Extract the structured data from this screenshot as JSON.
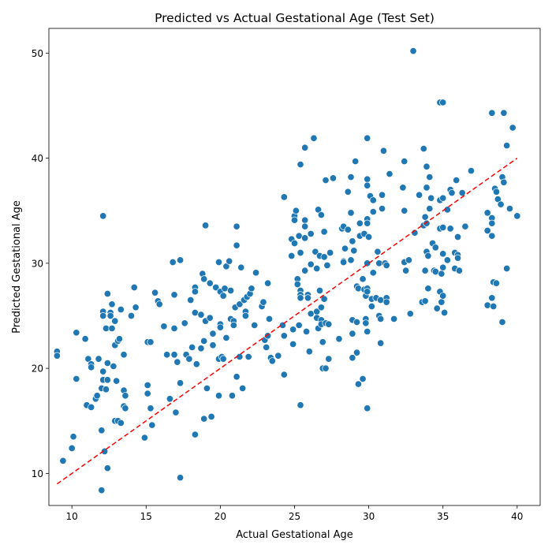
{
  "chart_data": {
    "type": "scatter",
    "title": "Predicted vs Actual Gestational Age (Test Set)",
    "xlabel": "Actual Gestational Age",
    "ylabel": "Predicted Gestational Age",
    "xlim": [
      8.45,
      41.55
    ],
    "ylim": [
      6.95,
      52.35
    ],
    "xticks": [
      10,
      15,
      20,
      25,
      30,
      35,
      40
    ],
    "yticks": [
      10,
      20,
      30,
      40,
      50
    ],
    "grid": false,
    "colors": {
      "point": "#1f77b4",
      "point_edge": "#ffffff",
      "reference_line": "#ff0000"
    },
    "reference_line": {
      "style": "dashed",
      "from": [
        9.0,
        9.0
      ],
      "to": [
        40.0,
        40.0
      ]
    },
    "points": [
      [
        9.0,
        21.6
      ],
      [
        9.0,
        21.2
      ],
      [
        9.4,
        11.2
      ],
      [
        10.0,
        12.4
      ],
      [
        10.1,
        13.5
      ],
      [
        10.3,
        19.0
      ],
      [
        10.3,
        23.4
      ],
      [
        10.9,
        22.8
      ],
      [
        11.0,
        16.5
      ],
      [
        11.1,
        20.9
      ],
      [
        11.3,
        20.4
      ],
      [
        11.3,
        20.1
      ],
      [
        11.3,
        16.3
      ],
      [
        11.6,
        17.1
      ],
      [
        11.7,
        17.4
      ],
      [
        11.8,
        20.9
      ],
      [
        12.0,
        18.1
      ],
      [
        12.0,
        8.4
      ],
      [
        12.0,
        14.1
      ],
      [
        12.1,
        34.5
      ],
      [
        12.1,
        25.4
      ],
      [
        12.1,
        25.0
      ],
      [
        12.1,
        19.7
      ],
      [
        12.1,
        18.9
      ],
      [
        12.2,
        12.1
      ],
      [
        12.3,
        23.8
      ],
      [
        12.3,
        18.0
      ],
      [
        12.4,
        27.1
      ],
      [
        12.4,
        20.5
      ],
      [
        12.4,
        18.9
      ],
      [
        12.4,
        10.5
      ],
      [
        12.6,
        25.3
      ],
      [
        12.6,
        25.0
      ],
      [
        12.7,
        26.1
      ],
      [
        12.7,
        23.8
      ],
      [
        12.8,
        20.2
      ],
      [
        12.9,
        15.0
      ],
      [
        12.9,
        22.2
      ],
      [
        12.9,
        24.5
      ],
      [
        13.0,
        18.8
      ],
      [
        13.1,
        15.0
      ],
      [
        13.1,
        22.6
      ],
      [
        13.2,
        22.8
      ],
      [
        13.3,
        25.6
      ],
      [
        13.3,
        14.8
      ],
      [
        13.5,
        17.9
      ],
      [
        13.5,
        21.3
      ],
      [
        13.5,
        16.4
      ],
      [
        13.6,
        16.2
      ],
      [
        13.6,
        17.4
      ],
      [
        14.0,
        25.0
      ],
      [
        14.2,
        27.7
      ],
      [
        14.3,
        25.8
      ],
      [
        14.9,
        13.4
      ],
      [
        15.1,
        22.5
      ],
      [
        15.1,
        18.4
      ],
      [
        15.1,
        17.6
      ],
      [
        15.3,
        16.2
      ],
      [
        15.3,
        22.5
      ],
      [
        15.4,
        14.6
      ],
      [
        15.6,
        27.2
      ],
      [
        15.8,
        26.4
      ],
      [
        15.9,
        26.1
      ],
      [
        16.2,
        24.0
      ],
      [
        16.4,
        21.3
      ],
      [
        16.6,
        17.1
      ],
      [
        16.8,
        30.1
      ],
      [
        16.9,
        27.0
      ],
      [
        16.9,
        23.8
      ],
      [
        16.9,
        21.3
      ],
      [
        17.0,
        15.8
      ],
      [
        17.1,
        20.6
      ],
      [
        17.3,
        30.3
      ],
      [
        17.3,
        18.6
      ],
      [
        17.3,
        9.6
      ],
      [
        17.6,
        24.3
      ],
      [
        17.7,
        21.3
      ],
      [
        17.9,
        20.9
      ],
      [
        18.0,
        26.5
      ],
      [
        18.1,
        22.0
      ],
      [
        18.3,
        27.7
      ],
      [
        18.3,
        27.3
      ],
      [
        18.3,
        25.3
      ],
      [
        18.3,
        13.7
      ],
      [
        18.4,
        20.4
      ],
      [
        18.7,
        25.1
      ],
      [
        18.7,
        21.9
      ],
      [
        18.8,
        29.0
      ],
      [
        18.9,
        28.5
      ],
      [
        18.9,
        22.6
      ],
      [
        18.9,
        15.2
      ],
      [
        19.0,
        33.6
      ],
      [
        19.0,
        24.5
      ],
      [
        19.1,
        18.1
      ],
      [
        19.3,
        28.1
      ],
      [
        19.3,
        24.8
      ],
      [
        19.4,
        15.4
      ],
      [
        19.5,
        23.3
      ],
      [
        19.5,
        22.2
      ],
      [
        19.7,
        27.7
      ],
      [
        19.9,
        30.1
      ],
      [
        19.9,
        20.9
      ],
      [
        19.9,
        17.4
      ],
      [
        20.0,
        27.3
      ],
      [
        20.0,
        24.2
      ],
      [
        20.0,
        23.9
      ],
      [
        20.1,
        21.1
      ],
      [
        20.2,
        26.9
      ],
      [
        20.2,
        20.9
      ],
      [
        20.3,
        27.6
      ],
      [
        20.4,
        29.7
      ],
      [
        20.4,
        22.9
      ],
      [
        20.6,
        30.2
      ],
      [
        20.7,
        27.4
      ],
      [
        20.7,
        24.7
      ],
      [
        20.8,
        17.4
      ],
      [
        20.9,
        24.5
      ],
      [
        20.9,
        24.1
      ],
      [
        21.0,
        25.8
      ],
      [
        21.1,
        19.2
      ],
      [
        21.1,
        31.7
      ],
      [
        21.1,
        33.5
      ],
      [
        21.3,
        26.1
      ],
      [
        21.3,
        21.1
      ],
      [
        21.4,
        29.6
      ],
      [
        21.5,
        18.1
      ],
      [
        21.6,
        26.5
      ],
      [
        21.7,
        25.4
      ],
      [
        21.7,
        25.0
      ],
      [
        21.8,
        26.8
      ],
      [
        21.9,
        21.1
      ],
      [
        22.0,
        27.1
      ],
      [
        22.1,
        27.6
      ],
      [
        22.3,
        24.1
      ],
      [
        22.4,
        29.1
      ],
      [
        22.8,
        25.9
      ],
      [
        22.9,
        26.3
      ],
      [
        23.0,
        22.7
      ],
      [
        23.1,
        22.0
      ],
      [
        23.2,
        23.1
      ],
      [
        23.2,
        28.1
      ],
      [
        23.3,
        24.7
      ],
      [
        23.4,
        21.0
      ],
      [
        23.5,
        20.7
      ],
      [
        23.9,
        21.2
      ],
      [
        24.2,
        24.1
      ],
      [
        24.3,
        36.3
      ],
      [
        24.3,
        23.1
      ],
      [
        24.3,
        19.4
      ],
      [
        24.8,
        32.3
      ],
      [
        24.8,
        30.7
      ],
      [
        24.9,
        23.7
      ],
      [
        24.9,
        22.3
      ],
      [
        25.0,
        34.5
      ],
      [
        25.0,
        34.1
      ],
      [
        25.0,
        31.9
      ],
      [
        25.1,
        35.0
      ],
      [
        25.2,
        28.5
      ],
      [
        25.2,
        28.0
      ],
      [
        25.3,
        32.6
      ],
      [
        25.3,
        24.1
      ],
      [
        25.4,
        16.5
      ],
      [
        25.4,
        39.4
      ],
      [
        25.4,
        31.0
      ],
      [
        25.4,
        27.4
      ],
      [
        25.4,
        27.0
      ],
      [
        25.4,
        26.7
      ],
      [
        25.7,
        41.0
      ],
      [
        25.7,
        34.1
      ],
      [
        25.7,
        33.5
      ],
      [
        25.7,
        32.4
      ],
      [
        25.7,
        29.3
      ],
      [
        25.8,
        23.5
      ],
      [
        25.9,
        27.0
      ],
      [
        25.9,
        26.7
      ],
      [
        26.0,
        21.6
      ],
      [
        26.1,
        25.2
      ],
      [
        26.1,
        29.9
      ],
      [
        26.1,
        32.8
      ],
      [
        26.3,
        41.9
      ],
      [
        26.4,
        31.1
      ],
      [
        26.5,
        29.5
      ],
      [
        26.5,
        25.4
      ],
      [
        26.5,
        24.8
      ],
      [
        26.6,
        23.8
      ],
      [
        26.6,
        35.1
      ],
      [
        26.7,
        30.7
      ],
      [
        26.7,
        27.4
      ],
      [
        26.8,
        34.6
      ],
      [
        26.8,
        25.8
      ],
      [
        26.8,
        24.6
      ],
      [
        26.8,
        24.2
      ],
      [
        26.9,
        22.5
      ],
      [
        26.9,
        20.0
      ],
      [
        27.0,
        30.6
      ],
      [
        27.0,
        26.6
      ],
      [
        27.0,
        33.0
      ],
      [
        27.1,
        37.9
      ],
      [
        27.1,
        20.0
      ],
      [
        27.1,
        24.3
      ],
      [
        27.2,
        29.8
      ],
      [
        27.3,
        20.9
      ],
      [
        27.3,
        24.2
      ],
      [
        27.4,
        31.0
      ],
      [
        27.6,
        38.1
      ],
      [
        28.0,
        22.8
      ],
      [
        28.2,
        33.3
      ],
      [
        28.3,
        33.5
      ],
      [
        28.3,
        30.2
      ],
      [
        28.3,
        30.1
      ],
      [
        28.4,
        31.4
      ],
      [
        28.6,
        36.8
      ],
      [
        28.6,
        33.2
      ],
      [
        28.8,
        38.2
      ],
      [
        28.8,
        34.8
      ],
      [
        28.8,
        30.3
      ],
      [
        28.9,
        32.1
      ],
      [
        28.9,
        24.6
      ],
      [
        28.9,
        23.3
      ],
      [
        28.9,
        21.0
      ],
      [
        29.0,
        31.2
      ],
      [
        29.1,
        39.7
      ],
      [
        29.2,
        27.8
      ],
      [
        29.2,
        24.4
      ],
      [
        29.2,
        21.5
      ],
      [
        29.3,
        27.6
      ],
      [
        29.3,
        18.5
      ],
      [
        29.4,
        33.8
      ],
      [
        29.4,
        32.6
      ],
      [
        29.6,
        28.5
      ],
      [
        29.6,
        19.0
      ],
      [
        29.7,
        27.5
      ],
      [
        29.7,
        32.8
      ],
      [
        29.8,
        26.9
      ],
      [
        29.8,
        24.7
      ],
      [
        29.8,
        24.3
      ],
      [
        29.9,
        41.9
      ],
      [
        29.9,
        38.0
      ],
      [
        29.9,
        37.4
      ],
      [
        29.9,
        34.2
      ],
      [
        29.9,
        33.8
      ],
      [
        29.9,
        30.0
      ],
      [
        29.9,
        27.6
      ],
      [
        29.9,
        27.3
      ],
      [
        29.9,
        23.5
      ],
      [
        29.9,
        16.2
      ],
      [
        30.0,
        32.5
      ],
      [
        30.1,
        36.4
      ],
      [
        30.2,
        26.6
      ],
      [
        30.2,
        25.9
      ],
      [
        30.3,
        29.1
      ],
      [
        30.3,
        34.9
      ],
      [
        30.3,
        36.0
      ],
      [
        30.5,
        26.7
      ],
      [
        30.6,
        31.1
      ],
      [
        30.7,
        30.0
      ],
      [
        30.7,
        25.0
      ],
      [
        30.8,
        26.5
      ],
      [
        30.8,
        24.7
      ],
      [
        30.8,
        22.4
      ],
      [
        30.9,
        36.5
      ],
      [
        30.9,
        35.2
      ],
      [
        31.0,
        40.7
      ],
      [
        31.1,
        30.0
      ],
      [
        31.2,
        29.8
      ],
      [
        31.2,
        26.7
      ],
      [
        31.2,
        26.3
      ],
      [
        31.4,
        38.5
      ],
      [
        31.7,
        24.7
      ],
      [
        32.3,
        37.2
      ],
      [
        32.4,
        35.0
      ],
      [
        32.4,
        39.7
      ],
      [
        32.4,
        30.1
      ],
      [
        32.5,
        29.3
      ],
      [
        32.7,
        30.3
      ],
      [
        32.8,
        25.2
      ],
      [
        33.0,
        50.2
      ],
      [
        33.1,
        32.9
      ],
      [
        33.4,
        36.5
      ],
      [
        33.6,
        26.3
      ],
      [
        33.7,
        33.6
      ],
      [
        33.7,
        40.9
      ],
      [
        33.8,
        29.3
      ],
      [
        33.8,
        26.4
      ],
      [
        33.8,
        34.4
      ],
      [
        33.9,
        31.1
      ],
      [
        33.9,
        33.8
      ],
      [
        33.9,
        37.2
      ],
      [
        33.9,
        39.2
      ],
      [
        34.0,
        30.7
      ],
      [
        34.0,
        27.6
      ],
      [
        34.1,
        38.2
      ],
      [
        34.1,
        35.2
      ],
      [
        34.2,
        36.2
      ],
      [
        34.3,
        31.9
      ],
      [
        34.4,
        29.3
      ],
      [
        34.5,
        29.2
      ],
      [
        34.5,
        31.5
      ],
      [
        34.6,
        25.7
      ],
      [
        34.8,
        45.3
      ],
      [
        34.8,
        36.0
      ],
      [
        34.8,
        33.3
      ],
      [
        34.8,
        27.3
      ],
      [
        34.9,
        29.0
      ],
      [
        34.9,
        26.3
      ],
      [
        35.0,
        45.3
      ],
      [
        35.0,
        36.2
      ],
      [
        35.0,
        33.4
      ],
      [
        35.0,
        30.9
      ],
      [
        35.0,
        29.6
      ],
      [
        35.0,
        26.9
      ],
      [
        35.1,
        25.3
      ],
      [
        35.3,
        35.1
      ],
      [
        35.3,
        30.3
      ],
      [
        35.5,
        37.0
      ],
      [
        35.5,
        33.3
      ],
      [
        35.6,
        36.7
      ],
      [
        35.8,
        29.5
      ],
      [
        35.8,
        31.0
      ],
      [
        35.9,
        37.9
      ],
      [
        36.0,
        32.5
      ],
      [
        36.0,
        30.8
      ],
      [
        36.0,
        30.5
      ],
      [
        36.1,
        29.3
      ],
      [
        36.3,
        36.7
      ],
      [
        36.5,
        33.5
      ],
      [
        36.9,
        38.8
      ],
      [
        38.0,
        34.8
      ],
      [
        38.0,
        33.1
      ],
      [
        38.0,
        26.0
      ],
      [
        38.3,
        44.3
      ],
      [
        38.3,
        34.3
      ],
      [
        38.3,
        33.8
      ],
      [
        38.3,
        32.6
      ],
      [
        38.3,
        26.7
      ],
      [
        38.4,
        25.9
      ],
      [
        38.4,
        28.2
      ],
      [
        38.5,
        37.1
      ],
      [
        38.6,
        36.8
      ],
      [
        38.6,
        28.1
      ],
      [
        38.7,
        36.1
      ],
      [
        38.9,
        35.6
      ],
      [
        39.0,
        24.4
      ],
      [
        39.0,
        38.2
      ],
      [
        39.1,
        44.3
      ],
      [
        39.1,
        37.7
      ],
      [
        39.3,
        41.2
      ],
      [
        39.3,
        29.5
      ],
      [
        39.5,
        35.2
      ],
      [
        39.7,
        42.9
      ],
      [
        40.0,
        34.5
      ]
    ]
  }
}
